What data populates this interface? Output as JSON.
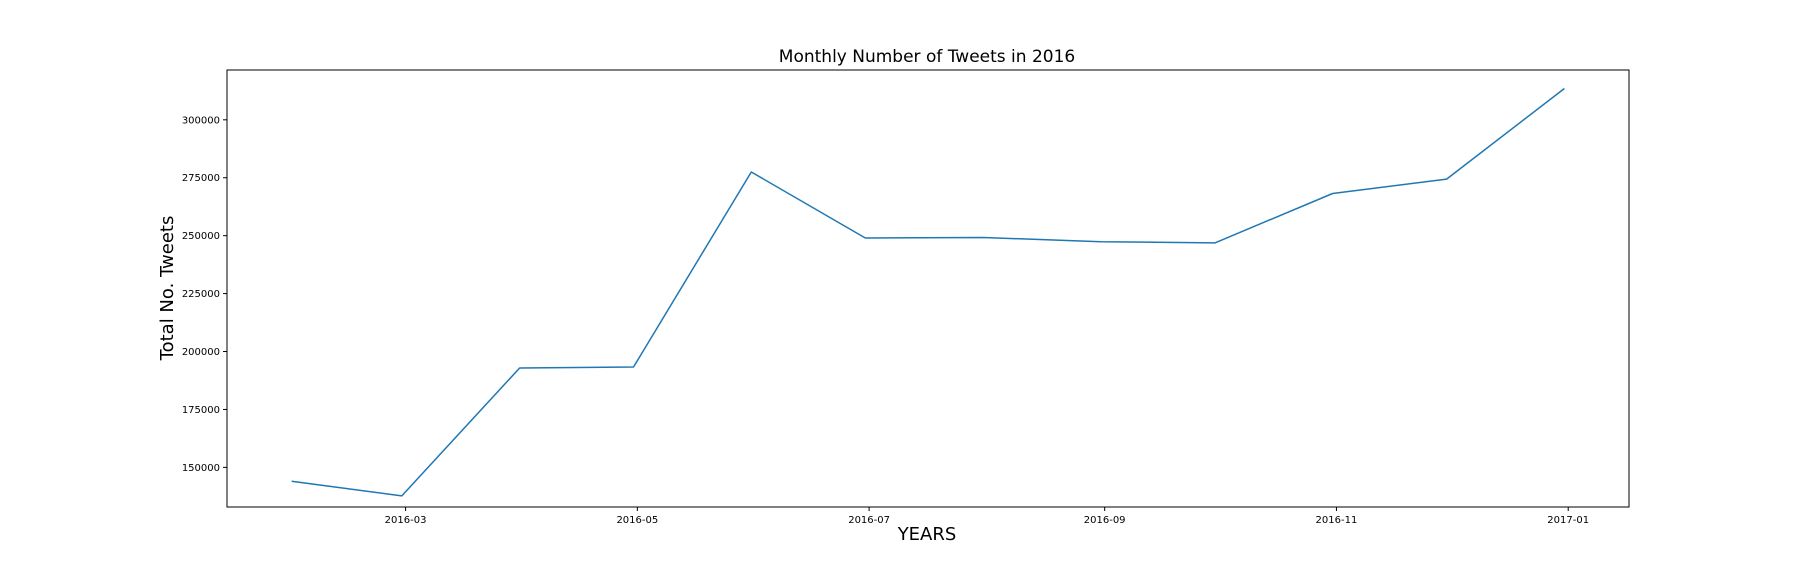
{
  "chart_data": {
    "type": "line",
    "title": "Monthly Number of Tweets in 2016",
    "xlabel": "YEARS",
    "ylabel": "Total No. Tweets",
    "x": [
      "2016-01-31",
      "2016-02-29",
      "2016-03-31",
      "2016-04-30",
      "2016-05-31",
      "2016-06-30",
      "2016-07-31",
      "2016-08-31",
      "2016-09-30",
      "2016-10-31",
      "2016-11-30",
      "2016-12-31"
    ],
    "series": [
      {
        "values": [
          144000,
          137700,
          192900,
          193300,
          277500,
          249000,
          249200,
          247400,
          246900,
          268200,
          274400,
          313500
        ],
        "color": "#1f77b4"
      }
    ],
    "x_ticks": [
      "2016-03",
      "2016-05",
      "2016-07",
      "2016-09",
      "2016-11",
      "2017-01"
    ],
    "y_ticks": [
      150000,
      175000,
      200000,
      225000,
      250000,
      275000,
      300000
    ],
    "xlim": [
      "2016-01-14",
      "2017-01-17"
    ],
    "ylim": [
      132900,
      321500
    ],
    "grid": false,
    "legend": "none"
  }
}
